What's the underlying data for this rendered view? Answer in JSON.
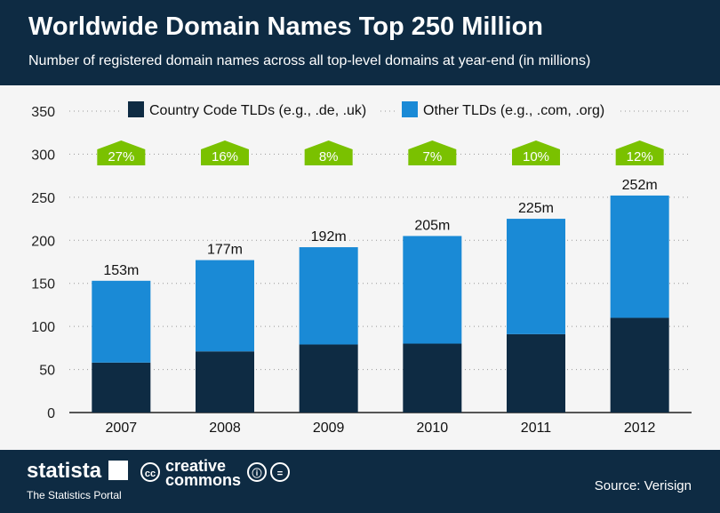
{
  "header": {
    "title": "Worldwide Domain Names Top 250 Million",
    "subtitle": "Number of registered domain names across all top-level domains at year-end (in millions)"
  },
  "footer": {
    "brand": "statista",
    "brand_tagline": "The Statistics Portal",
    "license_top": "creative",
    "license_bottom": "commons",
    "license_badge": "cc",
    "source": "Source: Verisign"
  },
  "colors": {
    "country_code": "#0e2b43",
    "other": "#1a8ad6",
    "growth_badge": "#7ac100",
    "header": "#0e2b43"
  },
  "chart_data": {
    "type": "bar",
    "stacked": true,
    "categories": [
      "2007",
      "2008",
      "2009",
      "2010",
      "2011",
      "2012"
    ],
    "series": [
      {
        "name": "Country Code TLDs (e.g., .de, .uk)",
        "values": [
          58,
          71,
          79,
          80,
          91,
          110
        ]
      },
      {
        "name": "Other TLDs (e.g., .com, .org)",
        "values": [
          95,
          106,
          113,
          125,
          134,
          142
        ]
      }
    ],
    "totals_labels": [
      "153m",
      "177m",
      "192m",
      "205m",
      "225m",
      "252m"
    ],
    "totals": [
      153,
      177,
      192,
      205,
      225,
      252
    ],
    "growth_labels": [
      "27%",
      "16%",
      "8%",
      "7%",
      "10%",
      "12%"
    ],
    "yticks": [
      "0",
      "50",
      "100",
      "150",
      "200",
      "250",
      "300",
      "350"
    ],
    "ylim": [
      0,
      350
    ],
    "grid": true,
    "legend_position": "top"
  }
}
